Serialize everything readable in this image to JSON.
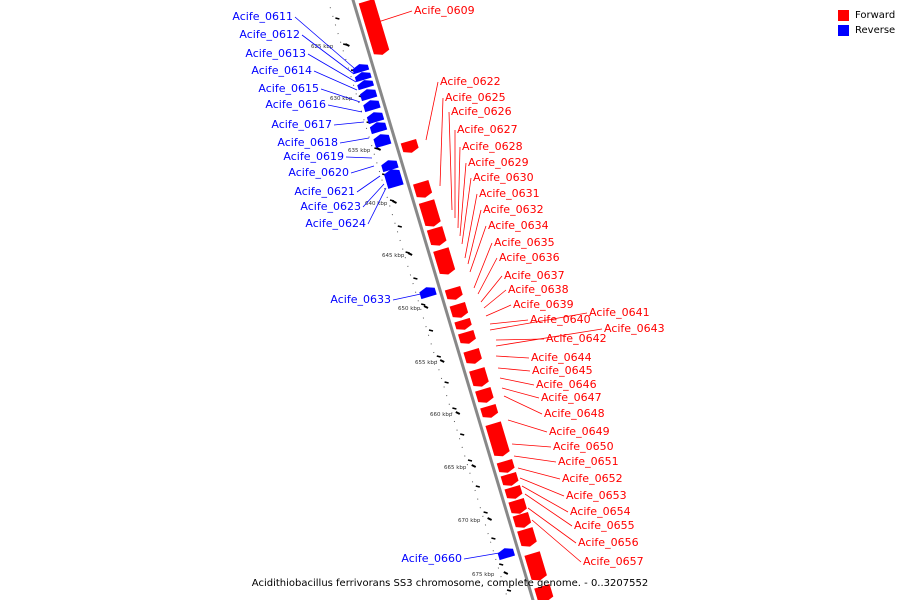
{
  "colors": {
    "forward": "#ff0000",
    "reverse": "#0000ff",
    "backbone": "#888888",
    "ruler": "#000000"
  },
  "legend": {
    "forward_label": "Forward",
    "reverse_label": "Reverse"
  },
  "caption": "Acidithiobacillus ferrivorans SS3 chromosome, complete genome. - 0..3207552",
  "ruler_labels": [
    "625 kbp",
    "630 kbp",
    "635 kbp",
    "640 kbp",
    "645 kbp",
    "650 kbp",
    "655 kbp",
    "660 kbp",
    "665 kbp",
    "670 kbp",
    "675 kbp"
  ],
  "genes_reverse": [
    "Acife_0611",
    "Acife_0612",
    "Acife_0613",
    "Acife_0614",
    "Acife_0615",
    "Acife_0616",
    "Acife_0617",
    "Acife_0618",
    "Acife_0619",
    "Acife_0620",
    "Acife_0621",
    "Acife_0623",
    "Acife_0624",
    "Acife_0633",
    "Acife_0660"
  ],
  "genes_forward": [
    "Acife_0609",
    "Acife_0622",
    "Acife_0625",
    "Acife_0626",
    "Acife_0627",
    "Acife_0628",
    "Acife_0629",
    "Acife_0630",
    "Acife_0631",
    "Acife_0632",
    "Acife_0634",
    "Acife_0635",
    "Acife_0636",
    "Acife_0637",
    "Acife_0638",
    "Acife_0639",
    "Acife_0640",
    "Acife_0641",
    "Acife_0642",
    "Acife_0643",
    "Acife_0644",
    "Acife_0645",
    "Acife_0646",
    "Acife_0647",
    "Acife_0648",
    "Acife_0649",
    "Acife_0650",
    "Acife_0651",
    "Acife_0652",
    "Acife_0653",
    "Acife_0654",
    "Acife_0655",
    "Acife_0656",
    "Acife_0657"
  ]
}
